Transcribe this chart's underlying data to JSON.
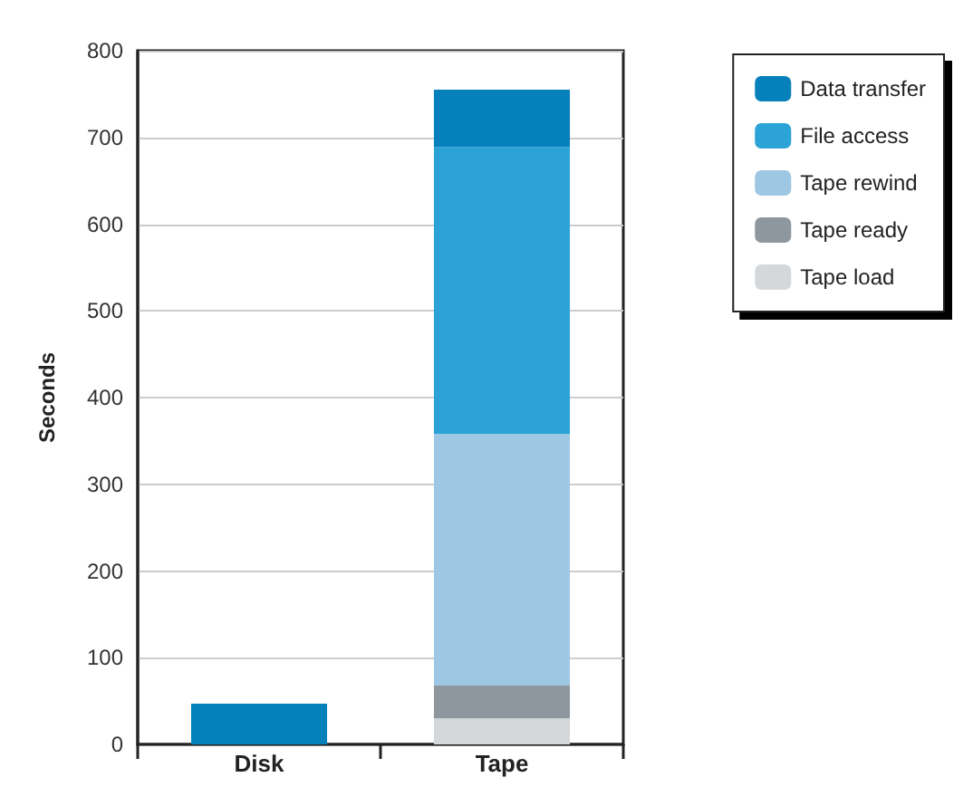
{
  "chart_data": {
    "type": "bar",
    "stacked": true,
    "ylabel": "Seconds",
    "categories": [
      "Disk",
      "Tape"
    ],
    "series": [
      {
        "name": "Tape load",
        "color": "#d5d8da",
        "values": [
          null,
          30
        ]
      },
      {
        "name": "Tape ready",
        "color": "#8f979e",
        "values": [
          null,
          38
        ]
      },
      {
        "name": "Tape rewind",
        "color": "#9dc7e2",
        "values": [
          null,
          290
        ]
      },
      {
        "name": "File access",
        "color": "#2ba3d6",
        "values": [
          null,
          331
        ]
      },
      {
        "name": "Data transfer",
        "color": "#0580bb",
        "values": [
          47,
          66
        ]
      }
    ],
    "ylim": [
      0,
      800
    ],
    "yticks": [
      0,
      100,
      200,
      300,
      400,
      500,
      600,
      700,
      800
    ],
    "grid": "y",
    "legend": "right"
  }
}
